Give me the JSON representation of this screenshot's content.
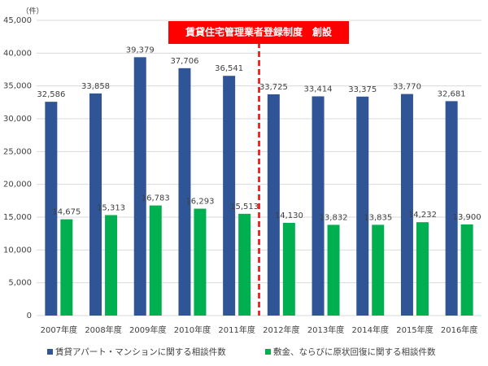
{
  "chart_data": {
    "type": "bar",
    "y_unit_label": "（件）",
    "annotation": "賃貸住宅管理業者登録制度　創設",
    "categories": [
      "2007年度",
      "2008年度",
      "2009年度",
      "2010年度",
      "2011年度",
      "2012年度",
      "2013年度",
      "2014年度",
      "2015年度",
      "2016年度"
    ],
    "series": [
      {
        "name": "賃貸アパート・マンションに関する相談件数",
        "color": "#2f5597",
        "values": [
          32586,
          33858,
          39379,
          37706,
          36541,
          33725,
          33414,
          33375,
          33770,
          32681
        ],
        "value_labels": [
          "32,586",
          "33,858",
          "39,379",
          "37,706",
          "36,541",
          "33,725",
          "33,414",
          "33,375",
          "33,770",
          "32,681"
        ]
      },
      {
        "name": "敷金、ならびに原状回復に関する相談件数",
        "color": "#00b050",
        "values": [
          14675,
          15313,
          16783,
          16293,
          15513,
          14130,
          13832,
          13835,
          14232,
          13900
        ],
        "value_labels": [
          "14,675",
          "15,313",
          "16,783",
          "16,293",
          "15,513",
          "14,130",
          "13,832",
          "13,835",
          "14,232",
          "13,900"
        ]
      }
    ],
    "ylim": [
      0,
      45000
    ],
    "yticks": [
      0,
      {
        "value": 5000,
        "label": "5,000"
      },
      {
        "value": 10000,
        "label": "10,000"
      },
      {
        "value": 15000,
        "label": "15,000"
      },
      {
        "value": 20000,
        "label": "20,000"
      },
      {
        "value": 25000,
        "label": "25,000"
      },
      {
        "value": 30000,
        "label": "30,000"
      },
      {
        "value": 35000,
        "label": "35,000"
      },
      {
        "value": 40000,
        "label": "40,000"
      },
      {
        "value": 45000,
        "label": "45,000"
      }
    ],
    "grid": true,
    "legend": "bottom"
  }
}
